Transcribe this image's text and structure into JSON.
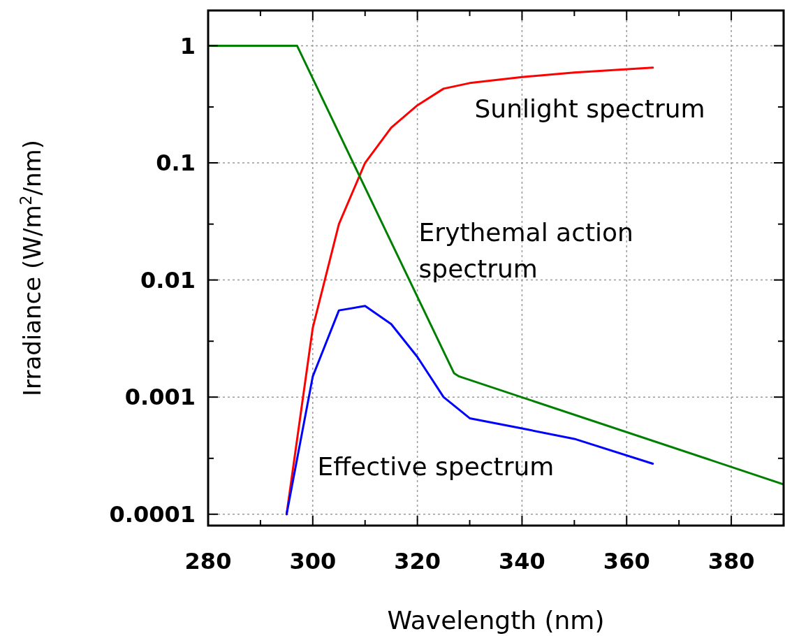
{
  "chart_data": {
    "type": "line",
    "xlabel": "Wavelength (nm)",
    "ylabel": "Irradiance (W/m$^{2}$/nm)",
    "log": "y",
    "grid": true,
    "legend": false,
    "marker": "none",
    "line_style": "solid",
    "xlim": [
      280,
      390
    ],
    "ylim": [
      8e-05,
      2
    ],
    "xticks": [
      280,
      {
        "value": 290,
        "label": null
      },
      300,
      {
        "value": 310,
        "label": null
      },
      320,
      {
        "value": 330,
        "label": null
      },
      340,
      {
        "value": 350,
        "label": null
      },
      360,
      {
        "value": 370,
        "label": null
      },
      380
    ],
    "yticks": [
      {
        "value": 0.0001,
        "label": "0.0001"
      },
      {
        "value": 0.0003,
        "label": null
      },
      {
        "value": 0.001,
        "label": "0.001"
      },
      {
        "value": 0.003,
        "label": null
      },
      {
        "value": 0.01,
        "label": "0.01"
      },
      {
        "value": 0.03,
        "label": null
      },
      {
        "value": 0.1,
        "label": "0.1"
      },
      {
        "value": 0.3,
        "label": null
      },
      {
        "value": 1,
        "label": "1"
      }
    ],
    "series": [
      {
        "name": "Sunlight spectrum",
        "color": "#ff0000",
        "x": [
          295,
          300,
          305,
          310,
          315,
          320,
          325,
          330,
          340,
          350,
          365
        ],
        "values": [
          0.0001,
          0.0039,
          0.03,
          0.1,
          0.2,
          0.31,
          0.43,
          0.48,
          0.54,
          0.59,
          0.65
        ]
      },
      {
        "name": "Erythemal action spectrum",
        "color": "#008000",
        "x": [
          280,
          297,
          327,
          328,
          390
        ],
        "values": [
          1,
          1,
          0.0016,
          0.0015,
          0.00018
        ]
      },
      {
        "name": "Effective spectrum",
        "color": "#0000ff",
        "x": [
          295,
          300,
          305,
          310,
          315,
          320,
          325,
          330,
          340,
          350,
          365
        ],
        "values": [
          0.0001,
          0.0015,
          0.0055,
          0.006,
          0.0042,
          0.0022,
          0.001,
          0.00066,
          0.00054,
          0.00044,
          0.00027
        ]
      }
    ]
  }
}
